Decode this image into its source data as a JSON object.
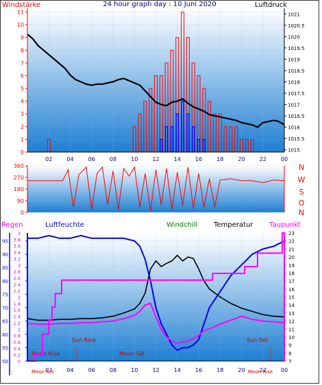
{
  "title": "24 hour graph day : 10 Juni 2020",
  "colors": {
    "wind": "#ff0000",
    "gust": "#0000ff",
    "pressure": "#000000",
    "direction": "#ff0000",
    "humidity": "#0000ff",
    "windchill": "#008000",
    "temperature": "#000000",
    "dewpoint": "#ff00ff",
    "rain": "#ff00ff",
    "sun_moon": "#cc0000",
    "bg_top": "#ffffff",
    "bg_bottom": "#1e7fd2"
  },
  "chart_data": [
    {
      "type": "line",
      "name": "wind-pressure",
      "left_label": "Windstärke",
      "right_label": "Luftdruck",
      "x_ticks": [
        "02",
        "04",
        "06",
        "08",
        "10",
        "12",
        "14",
        "16",
        "18",
        "20",
        "22",
        "00"
      ],
      "x_tick_hours": [
        2,
        4,
        6,
        8,
        10,
        12,
        14,
        16,
        18,
        20,
        22,
        24
      ],
      "y_left_ticks": [
        0,
        1,
        2,
        3,
        4,
        5,
        6,
        7,
        8,
        9,
        10,
        11
      ],
      "y_left_range": [
        0,
        11.3
      ],
      "y_right_ticks": [
        "1015",
        "1015.5",
        "1016",
        "1016.5",
        "1017",
        "1017.5",
        "1018",
        "1018.5",
        "1019",
        "1019.5",
        "1020",
        "1020.5",
        "1021"
      ],
      "y_right_range": [
        1014.9,
        1021.25
      ],
      "series": [
        {
          "type": "line",
          "key": "pressure",
          "x": [
            0,
            0.5,
            1,
            1.5,
            2,
            2.5,
            3,
            3.5,
            4,
            4.5,
            5,
            5.5,
            6,
            6.5,
            7,
            7.5,
            8,
            8.5,
            9,
            9.5,
            10,
            10.5,
            11,
            11.5,
            12,
            12.5,
            13,
            13.5,
            14,
            14.5,
            15,
            15.5,
            16,
            16.5,
            17,
            17.5,
            18,
            18.5,
            19,
            19.5,
            20,
            20.5,
            21,
            21.5,
            22,
            22.5,
            23,
            23.5,
            24
          ],
          "values": [
            1020.1,
            1019.9,
            1019.6,
            1019.4,
            1019.2,
            1019.0,
            1018.8,
            1018.6,
            1018.3,
            1018.1,
            1018.0,
            1017.9,
            1017.85,
            1017.9,
            1017.9,
            1017.95,
            1018.0,
            1018.1,
            1018.15,
            1018.05,
            1017.95,
            1017.85,
            1017.6,
            1017.35,
            1017.1,
            1017.0,
            1016.95,
            1017.1,
            1017.15,
            1017.25,
            1017.05,
            1016.9,
            1016.8,
            1016.7,
            1016.55,
            1016.5,
            1016.45,
            1016.4,
            1016.35,
            1016.3,
            1016.2,
            1016.15,
            1016.1,
            1016.0,
            1016.2,
            1016.25,
            1016.3,
            1016.25,
            1016.1
          ]
        },
        {
          "type": "bar",
          "key": "wind",
          "x": [
            2,
            10,
            10.5,
            11,
            11.5,
            12,
            12.5,
            13,
            13.5,
            14,
            14.5,
            15,
            15.5,
            16,
            16.5,
            17,
            17.5,
            18,
            18.5,
            19,
            19.5,
            20,
            20.5,
            21
          ],
          "values": [
            1,
            2,
            3,
            4,
            5,
            6,
            6,
            7,
            8,
            9,
            11,
            9,
            7,
            6,
            5,
            4,
            3,
            3,
            2,
            2,
            2,
            1,
            1,
            1
          ]
        },
        {
          "type": "bar",
          "key": "gust",
          "x": [
            12.5,
            13,
            13.5,
            14,
            14.5,
            15,
            15.5,
            16,
            16.5
          ],
          "values": [
            1,
            2,
            2,
            3,
            4,
            3,
            2,
            1,
            1
          ]
        }
      ]
    },
    {
      "type": "line",
      "name": "wind-direction",
      "direction_labels": [
        "N",
        "W",
        "S",
        "O",
        "N"
      ],
      "y_ticks": [
        0,
        90,
        180,
        270,
        360
      ],
      "y_range": [
        0,
        360
      ],
      "series": [
        {
          "key": "direction",
          "x": [
            0,
            3.3,
            3.8,
            4.3,
            4.8,
            5.5,
            6,
            6.5,
            7,
            7.5,
            8,
            8.5,
            9,
            9.5,
            10,
            10.5,
            11,
            11.5,
            12,
            12.5,
            13,
            13.5,
            14,
            14.5,
            15,
            15.5,
            16,
            16.5,
            17,
            17.5,
            18,
            19,
            20,
            21,
            22,
            23,
            24
          ],
          "values": [
            245,
            245,
            330,
            40,
            290,
            350,
            20,
            300,
            350,
            60,
            320,
            20,
            340,
            280,
            350,
            40,
            300,
            10,
            330,
            60,
            340,
            20,
            310,
            50,
            350,
            30,
            300,
            40,
            260,
            40,
            250,
            260,
            245,
            245,
            230,
            250,
            245
          ]
        }
      ]
    },
    {
      "type": "line",
      "name": "temperature-humidity",
      "left_labels": [
        "Regen",
        "Luftfeuchte"
      ],
      "middle_labels": [
        "Windchill",
        "Temperatur"
      ],
      "right_label": "Taupunkt",
      "x_ticks": [
        "02",
        "04",
        "06",
        "08",
        "10",
        "12",
        "14",
        "16",
        "18",
        "20",
        "22",
        "00"
      ],
      "x_tick_hours": [
        2,
        4,
        6,
        8,
        10,
        12,
        14,
        16,
        18,
        20,
        22,
        24
      ],
      "humidity_ticks": [
        50,
        55,
        60,
        65,
        70,
        75,
        80,
        85,
        90,
        95
      ],
      "humidity_range": [
        50,
        98
      ],
      "rain_ticks": [
        "0",
        "0.2",
        "0.4",
        "0.6",
        "0.8",
        "1",
        "1.2",
        "1.4",
        "1.6",
        "1.8",
        "2",
        "2.2",
        "2.4",
        "2.6",
        "2.8",
        "3",
        "3.2",
        "3.4",
        "3.6",
        "3.8",
        "3"
      ],
      "temp_ticks": [
        7,
        8,
        9,
        10,
        11,
        12,
        13,
        14,
        15,
        16,
        17,
        18,
        19,
        20,
        21,
        22,
        23
      ],
      "temp_range": [
        7,
        23
      ],
      "annotations": [
        "Moon Rise",
        "Sun Rise",
        "Moon Set",
        "Sun Set",
        "Moon Set",
        "Moon Rise"
      ],
      "series": [
        {
          "key": "humidity",
          "x": [
            0,
            1,
            2,
            3,
            4,
            5,
            6,
            7,
            8,
            9,
            10,
            10.5,
            11,
            11.5,
            12,
            12.5,
            13,
            13.5,
            14,
            14.5,
            15,
            15.5,
            16,
            16.5,
            17,
            18,
            19,
            20,
            21,
            22,
            23,
            24
          ],
          "values": [
            96,
            96,
            97,
            96,
            96,
            97,
            96,
            96,
            96,
            96,
            95,
            93,
            88,
            80,
            70,
            64,
            60,
            56,
            54,
            55,
            55,
            56,
            58,
            64,
            70,
            76,
            82,
            86,
            90,
            92,
            93,
            95
          ]
        },
        {
          "key": "temperature",
          "x": [
            0,
            1,
            2,
            3,
            4,
            5,
            6,
            7,
            8,
            9,
            10,
            10.5,
            11,
            11.5,
            12,
            12.5,
            13,
            13.5,
            14,
            14.5,
            15,
            15.5,
            16,
            16.5,
            17,
            18,
            19,
            20,
            21,
            22,
            23,
            24
          ],
          "values": [
            12.3,
            12.1,
            12.1,
            12.2,
            12.2,
            12.3,
            12.3,
            12.4,
            12.6,
            13.0,
            13.5,
            14.2,
            15.5,
            18.5,
            19.5,
            18.8,
            19.2,
            19.5,
            20.2,
            19.5,
            20.0,
            19.8,
            18.5,
            17.0,
            16.0,
            15.0,
            14.2,
            13.6,
            13.2,
            12.8,
            12.6,
            12.5
          ]
        },
        {
          "key": "dewpoint",
          "x": [
            0,
            1,
            2,
            3,
            4,
            5,
            6,
            7,
            8,
            9,
            10,
            10.5,
            11,
            11.5,
            12,
            12.5,
            13,
            13.5,
            14,
            14.5,
            15,
            15.5,
            16,
            16.5,
            17,
            18,
            19,
            20,
            21,
            22,
            23,
            24
          ],
          "values": [
            11.7,
            11.6,
            11.6,
            11.7,
            11.7,
            11.8,
            11.8,
            11.9,
            12.0,
            12.3,
            12.7,
            13.2,
            14.0,
            14.2,
            12.5,
            11.0,
            10.0,
            9.5,
            9.2,
            9.4,
            9.5,
            9.8,
            10.2,
            10.8,
            11.0,
            11.6,
            12.1,
            12.6,
            12.2,
            12.0,
            11.9,
            11.8
          ]
        },
        {
          "key": "rain",
          "x": [
            0,
            0.7,
            0.7,
            1.4,
            1.4,
            2.0,
            2.0,
            2.3,
            2.3,
            2.6,
            2.6,
            3.2,
            3.2,
            17.3,
            17.3,
            20.3,
            20.3,
            21.5,
            21.5,
            23.8,
            23.8,
            24
          ],
          "values": [
            0,
            0,
            0.2,
            0.2,
            0.8,
            0.8,
            1.2,
            1.2,
            1.6,
            1.6,
            2.0,
            2.0,
            2.4,
            2.4,
            2.6,
            2.6,
            2.8,
            2.8,
            3.2,
            3.2,
            3.8,
            3.8
          ]
        }
      ]
    }
  ]
}
